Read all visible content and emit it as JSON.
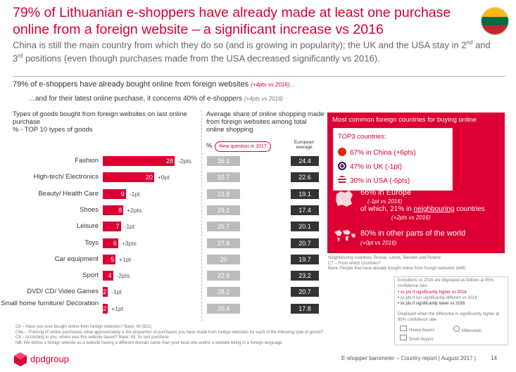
{
  "title": "79% of Lithuanian e-shoppers have already made at least one purchase online from a foreign website – a significant increase vs 2016",
  "subtitle_pre": "China is still the main country from which they do so (and is growing in popularity); the UK and the USA stay in 2",
  "subtitle_sup1": "nd",
  "subtitle_mid": " and 3",
  "subtitle_sup2": "rd",
  "subtitle_post": " positions (even though purchases made from the USA decreased significantly vs 2016).",
  "line1_text": "79% of e-shoppers  have already bought online from foreign websites ",
  "line1_note": "(+4pts vs 2016)…",
  "line2_text": "…and for their latest online purchase, it concerns 40% of e-shoppers ",
  "line2_note": "(+4pts vs 2016)",
  "left_header": "Types of goods bought from foreign websites on last online purchase\n% - TOP 10 types of goods",
  "mid_header": "Average share of online shopping made  from foreign websites among total online shopping",
  "mid_header_pct": "%",
  "new_question": "New question in 2017",
  "euro_header": "European average",
  "colors": {
    "accent": "#dc0032",
    "grey_box": "#bbbbbb",
    "dark_box": "#333333"
  },
  "chart_data": {
    "type": "bar",
    "title": "Types of goods bought from foreign websites on last online purchase",
    "ylabel": "% - TOP 10 types of goods",
    "categories": [
      "Fashion",
      "High-tech/ Electronics",
      "Beauty/ Health Care",
      "Shoes",
      "Leisure",
      "Toys",
      "Car equipment",
      "Sport",
      "DVD/ CD/ Video Games",
      "Small home furniture/ Decoration"
    ],
    "values": [
      28,
      20,
      9,
      8,
      7,
      6,
      5,
      4,
      2,
      2
    ],
    "evolution": [
      "-2pts",
      "+0pt",
      "-1pt",
      "+2pts",
      "-1pt",
      "+3pts",
      "+1pt",
      "-2pts",
      "-1pt",
      "+1pt"
    ],
    "avg_share_foreign": [
      "36.1",
      "32.7",
      "23.8",
      "29.2",
      "26.7",
      "27.8",
      "20",
      "22.9",
      "28.2",
      "20.4"
    ],
    "european_average": [
      "24.4",
      "22.6",
      "19.1",
      "17.4",
      "20.1",
      "20.7",
      "19.7",
      "23.2",
      "20.7",
      "17.8"
    ],
    "xlim": [
      0,
      28
    ]
  },
  "panel": {
    "title": "Most common  foreign countries for buying online",
    "top3_label": "TOP3  countries:",
    "countries": [
      {
        "pct": "67% in China",
        "evo": " (+6pts)",
        "flag": "china-flag-icon"
      },
      {
        "pct": "47% in UK",
        "evo": " (-1pt)",
        "flag": "uk-flag-icon"
      },
      {
        "pct": "30% in USA",
        "evo": " (-6pts)",
        "flag": "usa-flag-icon"
      }
    ],
    "europe_main": "66% in Europe",
    "europe_evo": "(-1pt vs 2016)",
    "europe_sub_pre": " of which, 21% in ",
    "europe_sub_link": "neighbouring",
    "europe_sub_post": " countries",
    "europe_sub_evo": "(+2pts vs 2016)",
    "world_main": "80% in other parts of the world",
    "world_evo": "(+0pt vs 2016)"
  },
  "neighbour_note": "Neighbouring countries: Russia, Latvia, Sweden and Poland\nC7 – From which countries?\nBase: People that have already bought online from foreign websites (648)",
  "legend": {
    "evo_title": "Evolutions vs 2016 are displayed as follows at 95% confidence rate:",
    "evo1": "• xx pts if significantly higher vs 2016",
    "evo2": "• xx pts if not significantly different vs 2016",
    "evo3": "• xx pts if significantly lower vs 2016",
    "diff_title": "Displayed when the difference is significantly higher at 95% confidence rate",
    "heavy": "Heavy buyers",
    "millennials": "Millennials",
    "small": "Small buyers"
  },
  "footnotes": [
    "C6 – Have you ever bought online from foreign websites? Base: All (821)",
    "C6e – Thinking of online purchases, what approximately is the proportion of purchases you have made from foreign websites for each of the following type of goods?",
    "C6 – According to you, where was this website based? Base: All, for last purchase",
    "NB: We define a foreign website as a website having a different domain name than your local one and/or a website being in a foreign language."
  ],
  "footer": {
    "brand": "dpdgroup",
    "report": "E-shopper barometer  –  Country report  |  August 2017  |",
    "page": "14"
  }
}
